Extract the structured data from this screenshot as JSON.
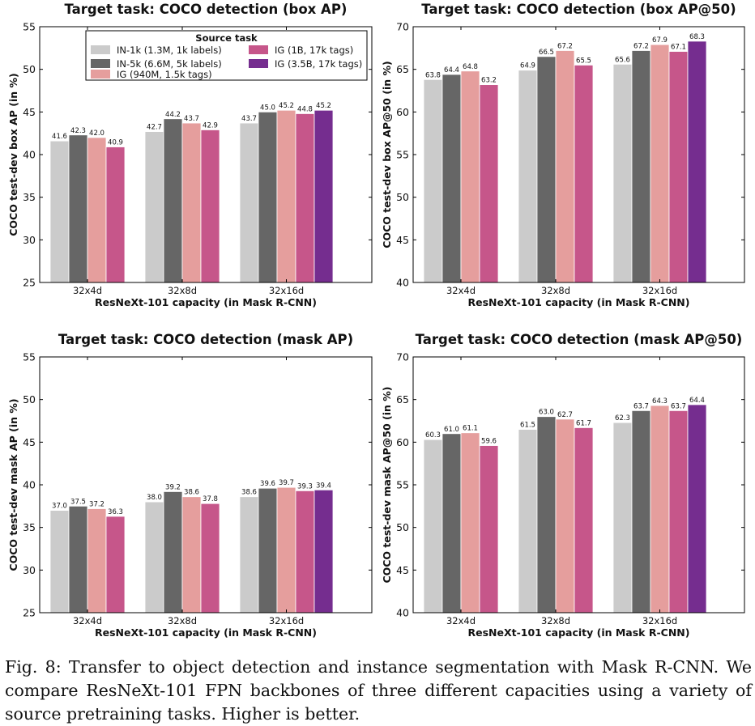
{
  "caption": "Fig. 8: Transfer to object detection and instance segmentation with Mask R-CNN. We compare ResNeXt-101 FPN backbones of three different capacities using a variety of source pretraining tasks. Higher is better.",
  "legend_title": "Source task",
  "colors": {
    "IN-1k (1.3M, 1k labels)": "#cbcbcb",
    "IN-5k (6.6M, 5k labels)": "#666666",
    "IG (940M, 1.5k tags)": "#e59e9d",
    "IG (1B, 17k tags)": "#c6568a",
    "IG (3.5B, 17k tags)": "#752d8f"
  },
  "chart_data": [
    {
      "type": "bar",
      "title": "Target task: COCO detection (box AP)",
      "xlabel": "ResNeXt-101 capacity (in Mask R-CNN)",
      "ylabel": "COCO test-dev box AP (in %)",
      "ylim": [
        25,
        55
      ],
      "yticks": [
        25,
        30,
        35,
        40,
        45,
        50,
        55
      ],
      "categories": [
        "32x4d",
        "32x8d",
        "32x16d"
      ],
      "legend": "top-center",
      "series": [
        {
          "name": "IN-1k (1.3M, 1k labels)",
          "values": [
            41.6,
            42.7,
            43.7
          ]
        },
        {
          "name": "IN-5k (6.6M, 5k labels)",
          "values": [
            42.3,
            44.2,
            45.0
          ]
        },
        {
          "name": "IG (940M, 1.5k tags)",
          "values": [
            42.0,
            43.7,
            45.2
          ]
        },
        {
          "name": "IG (1B, 17k tags)",
          "values": [
            40.9,
            42.9,
            44.8
          ]
        },
        {
          "name": "IG (3.5B, 17k tags)",
          "values": [
            null,
            null,
            45.2
          ]
        }
      ]
    },
    {
      "type": "bar",
      "title": "Target task: COCO detection (box AP@50)",
      "xlabel": "ResNeXt-101 capacity (in Mask R-CNN)",
      "ylabel": "COCO test-dev box AP@50 (in %)",
      "ylim": [
        40,
        70
      ],
      "yticks": [
        40,
        45,
        50,
        55,
        60,
        65,
        70
      ],
      "categories": [
        "32x4d",
        "32x8d",
        "32x16d"
      ],
      "series": [
        {
          "name": "IN-1k (1.3M, 1k labels)",
          "values": [
            63.8,
            64.9,
            65.6
          ]
        },
        {
          "name": "IN-5k (6.6M, 5k labels)",
          "values": [
            64.4,
            66.5,
            67.2
          ]
        },
        {
          "name": "IG (940M, 1.5k tags)",
          "values": [
            64.8,
            67.2,
            67.9
          ]
        },
        {
          "name": "IG (1B, 17k tags)",
          "values": [
            63.2,
            65.5,
            67.1
          ]
        },
        {
          "name": "IG (3.5B, 17k tags)",
          "values": [
            null,
            null,
            68.3
          ]
        }
      ]
    },
    {
      "type": "bar",
      "title": "Target task: COCO detection (mask AP)",
      "xlabel": "ResNeXt-101 capacity (in Mask R-CNN)",
      "ylabel": "COCO test-dev mask AP (in %)",
      "ylim": [
        25,
        55
      ],
      "yticks": [
        25,
        30,
        35,
        40,
        45,
        50,
        55
      ],
      "categories": [
        "32x4d",
        "32x8d",
        "32x16d"
      ],
      "series": [
        {
          "name": "IN-1k (1.3M, 1k labels)",
          "values": [
            37.0,
            38.0,
            38.6
          ]
        },
        {
          "name": "IN-5k (6.6M, 5k labels)",
          "values": [
            37.5,
            39.2,
            39.6
          ]
        },
        {
          "name": "IG (940M, 1.5k tags)",
          "values": [
            37.2,
            38.6,
            39.7
          ]
        },
        {
          "name": "IG (1B, 17k tags)",
          "values": [
            36.3,
            37.8,
            39.3
          ]
        },
        {
          "name": "IG (3.5B, 17k tags)",
          "values": [
            null,
            null,
            39.4
          ]
        }
      ]
    },
    {
      "type": "bar",
      "title": "Target task: COCO detection (mask AP@50)",
      "xlabel": "ResNeXt-101 capacity (in Mask R-CNN)",
      "ylabel": "COCO test-dev mask AP@50 (in %)",
      "ylim": [
        40,
        70
      ],
      "yticks": [
        40,
        45,
        50,
        55,
        60,
        65,
        70
      ],
      "categories": [
        "32x4d",
        "32x8d",
        "32x16d"
      ],
      "series": [
        {
          "name": "IN-1k (1.3M, 1k labels)",
          "values": [
            60.3,
            61.5,
            62.3
          ]
        },
        {
          "name": "IN-5k (6.6M, 5k labels)",
          "values": [
            61.0,
            63.0,
            63.7
          ]
        },
        {
          "name": "IG (940M, 1.5k tags)",
          "values": [
            61.1,
            62.7,
            64.3
          ]
        },
        {
          "name": "IG (1B, 17k tags)",
          "values": [
            59.6,
            61.7,
            63.7
          ]
        },
        {
          "name": "IG (3.5B, 17k tags)",
          "values": [
            null,
            null,
            64.4
          ]
        }
      ]
    }
  ]
}
